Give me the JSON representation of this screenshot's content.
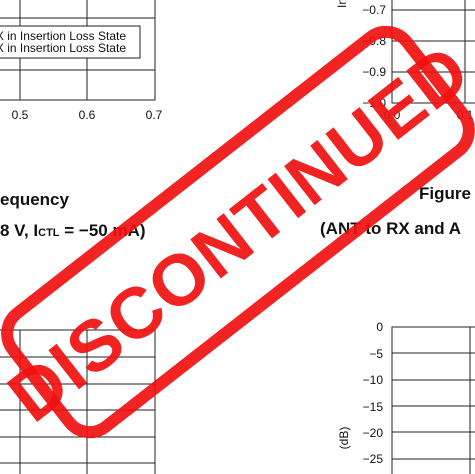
{
  "top_left_chart": {
    "legend": [
      "TX in Insertion Loss State",
      "RX in Insertion Loss State"
    ],
    "x_ticks": [
      "0.5",
      "0.6",
      "0.7"
    ]
  },
  "top_right_chart": {
    "y_label": "In",
    "y_ticks": [
      "−0.7",
      "−0.8",
      "−0.9",
      "−1.0"
    ],
    "x_ticks": [
      "0.0",
      "0.1"
    ]
  },
  "caption_left": {
    "line1": "equency",
    "line2": [
      "8 V, I",
      "CTL",
      " = −50 mA)"
    ]
  },
  "caption_right": {
    "line1": "Figure",
    "line2": "(ANT to RX and A"
  },
  "bottom_right_chart": {
    "y_label": "(dB)",
    "y_ticks": [
      "0",
      "−5",
      "−10",
      "−15",
      "−20",
      "−25"
    ]
  },
  "stamp": "DISCONTINUED"
}
